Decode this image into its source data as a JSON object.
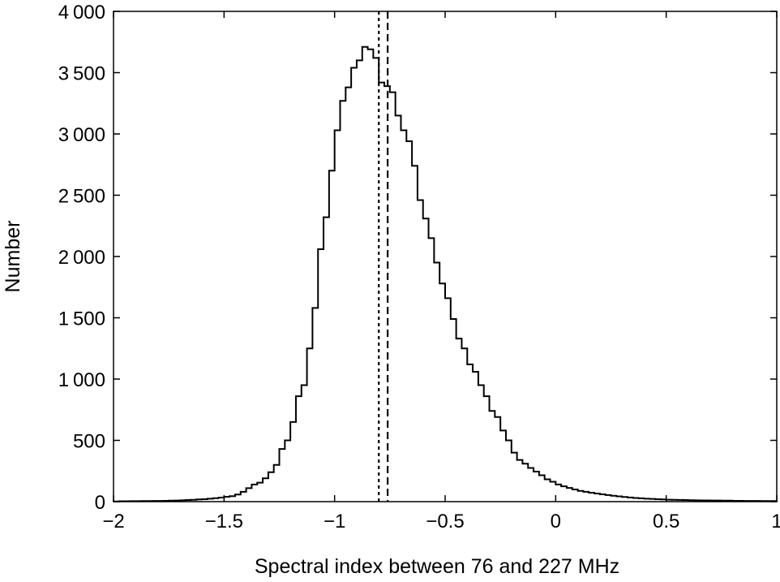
{
  "chart_data": {
    "type": "histogram",
    "title": "",
    "xlabel": "Spectral index between 76 and 227 MHz",
    "ylabel": "Number",
    "xlim": [
      -2,
      1
    ],
    "ylim": [
      0,
      4000
    ],
    "grid": false,
    "xticks": [
      -2,
      -1.5,
      -1,
      -0.5,
      0,
      0.5,
      1
    ],
    "xtick_labels": [
      "−2",
      "−1.5",
      "−1",
      "−0.5",
      "0",
      "0.5",
      "1"
    ],
    "yticks": [
      0,
      500,
      1000,
      1500,
      2000,
      2500,
      3000,
      3500,
      4000
    ],
    "ytick_labels": [
      "0",
      "500",
      "1 000",
      "1 500",
      "2 000",
      "2 500",
      "3 000",
      "3 500",
      "4 000"
    ],
    "bin_width": 0.025,
    "bin_start": -2.0,
    "counts": [
      2,
      3,
      3,
      4,
      4,
      5,
      5,
      6,
      6,
      7,
      8,
      9,
      11,
      13,
      15,
      18,
      20,
      24,
      28,
      33,
      40,
      45,
      58,
      80,
      110,
      140,
      155,
      190,
      240,
      300,
      430,
      500,
      650,
      860,
      950,
      1250,
      1580,
      2060,
      2320,
      2700,
      3030,
      3270,
      3380,
      3540,
      3600,
      3710,
      3690,
      3620,
      3420,
      3390,
      3340,
      3150,
      3030,
      2940,
      2740,
      2460,
      2310,
      2150,
      1950,
      1780,
      1660,
      1490,
      1330,
      1250,
      1120,
      1060,
      950,
      860,
      740,
      690,
      580,
      500,
      400,
      340,
      310,
      275,
      245,
      215,
      182,
      162,
      140,
      125,
      112,
      99,
      88,
      80,
      73,
      66,
      60,
      54,
      48,
      43,
      38,
      34,
      30,
      27,
      24,
      22,
      20,
      18,
      16,
      15,
      14,
      13,
      12,
      11,
      10,
      10,
      9,
      9,
      8,
      8,
      7,
      7,
      6,
      6,
      6,
      5,
      5,
      5
    ],
    "vlines": [
      {
        "x": -0.8,
        "style": "dotted"
      },
      {
        "x": -0.76,
        "style": "dashed"
      }
    ]
  }
}
